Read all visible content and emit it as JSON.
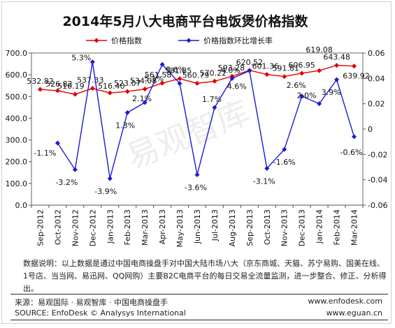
{
  "chart_data": {
    "type": "line",
    "title": "2014年5月八大电商平台电饭煲价格指数",
    "categories": [
      "Sep-2012",
      "Oct-2012",
      "Nov-2012",
      "Dec-2012",
      "Jan-2013",
      "Feb-2013",
      "Mar-2013",
      "Apr-2013",
      "May-2013",
      "Jun-2013",
      "Jul-2013",
      "Aug-2013",
      "Sep-2013",
      "Oct-2013",
      "Nov-2013",
      "Dec-2013",
      "Jan-2014",
      "Feb-2014",
      "Mar-2014"
    ],
    "series": [
      {
        "name": "价格指数",
        "axis": "left",
        "color": "#e00000",
        "marker": "diamond",
        "values": [
          532.82,
          526.82,
          510.19,
          537.33,
          516.4,
          523.07,
          534.08,
          561.58,
          581.85,
          560.79,
          570.22,
          593.28,
          620.52,
          601.36,
          591.81,
          606.95,
          619.08,
          643.48,
          639.92
        ],
        "labels": [
          "532.82",
          "526.82",
          "510.19",
          "537.33",
          "516.40",
          "523.07",
          "534.08",
          "561.58",
          "581.85",
          "560.79",
          "570.22",
          "593.28",
          "620.52",
          "601.36",
          "591.81",
          "606.95",
          "619.08",
          "643.48",
          "639.92"
        ]
      },
      {
        "name": "价格指数环比增长率",
        "axis": "right",
        "color": "#1a1ad6",
        "marker": "diamond",
        "values": [
          null,
          -0.011,
          -0.032,
          0.053,
          -0.039,
          0.013,
          0.021,
          0.051,
          0.036,
          -0.036,
          0.017,
          0.04,
          0.046,
          -0.031,
          -0.016,
          0.026,
          0.02,
          0.039,
          -0.006
        ],
        "labels": [
          "",
          "-1.1%",
          "-3.2%",
          "5.3%",
          "-3.9%",
          "1.3%",
          "2.1%",
          "5.1%",
          "3.6%",
          "-3.6%",
          "1.7%",
          "4.0%",
          "4.6%",
          "-3.1%",
          "-1.6%",
          "2.6%",
          "2.0%",
          "3.9%",
          "-0.6%"
        ]
      }
    ],
    "y_left": {
      "ylim": [
        0,
        700
      ],
      "ticks": [
        "0.0",
        "100.0",
        "200.0",
        "300.0",
        "400.0",
        "500.0",
        "600.0",
        "700.0"
      ]
    },
    "y_right": {
      "ylim": [
        -0.06,
        0.06
      ],
      "ticks": [
        "0.06",
        "0.04",
        "0.02",
        "0",
        "-0.02",
        "-0.04",
        "-0.06"
      ]
    },
    "grid": false,
    "legend": "top-center",
    "watermark": "易观智库"
  },
  "footer": {
    "note": "数据说明：以上数据是通过中国电商操盘手对中国大陆市场八大（京东商城、天猫、苏宁易购、国美在线、1号店、当当网、易迅网、QQ网购）主要B2C电商平台的每日交易全流量监测，进一步整合、修正、分析得出。",
    "source_cn": "来源：易观国际 · 易观智库 · 中国电商操盘手",
    "source_en": "SOURCE: EnfoDesk © Analysys International",
    "url1": "www.enfodesk.com",
    "url2": "www.eguan.cn"
  }
}
